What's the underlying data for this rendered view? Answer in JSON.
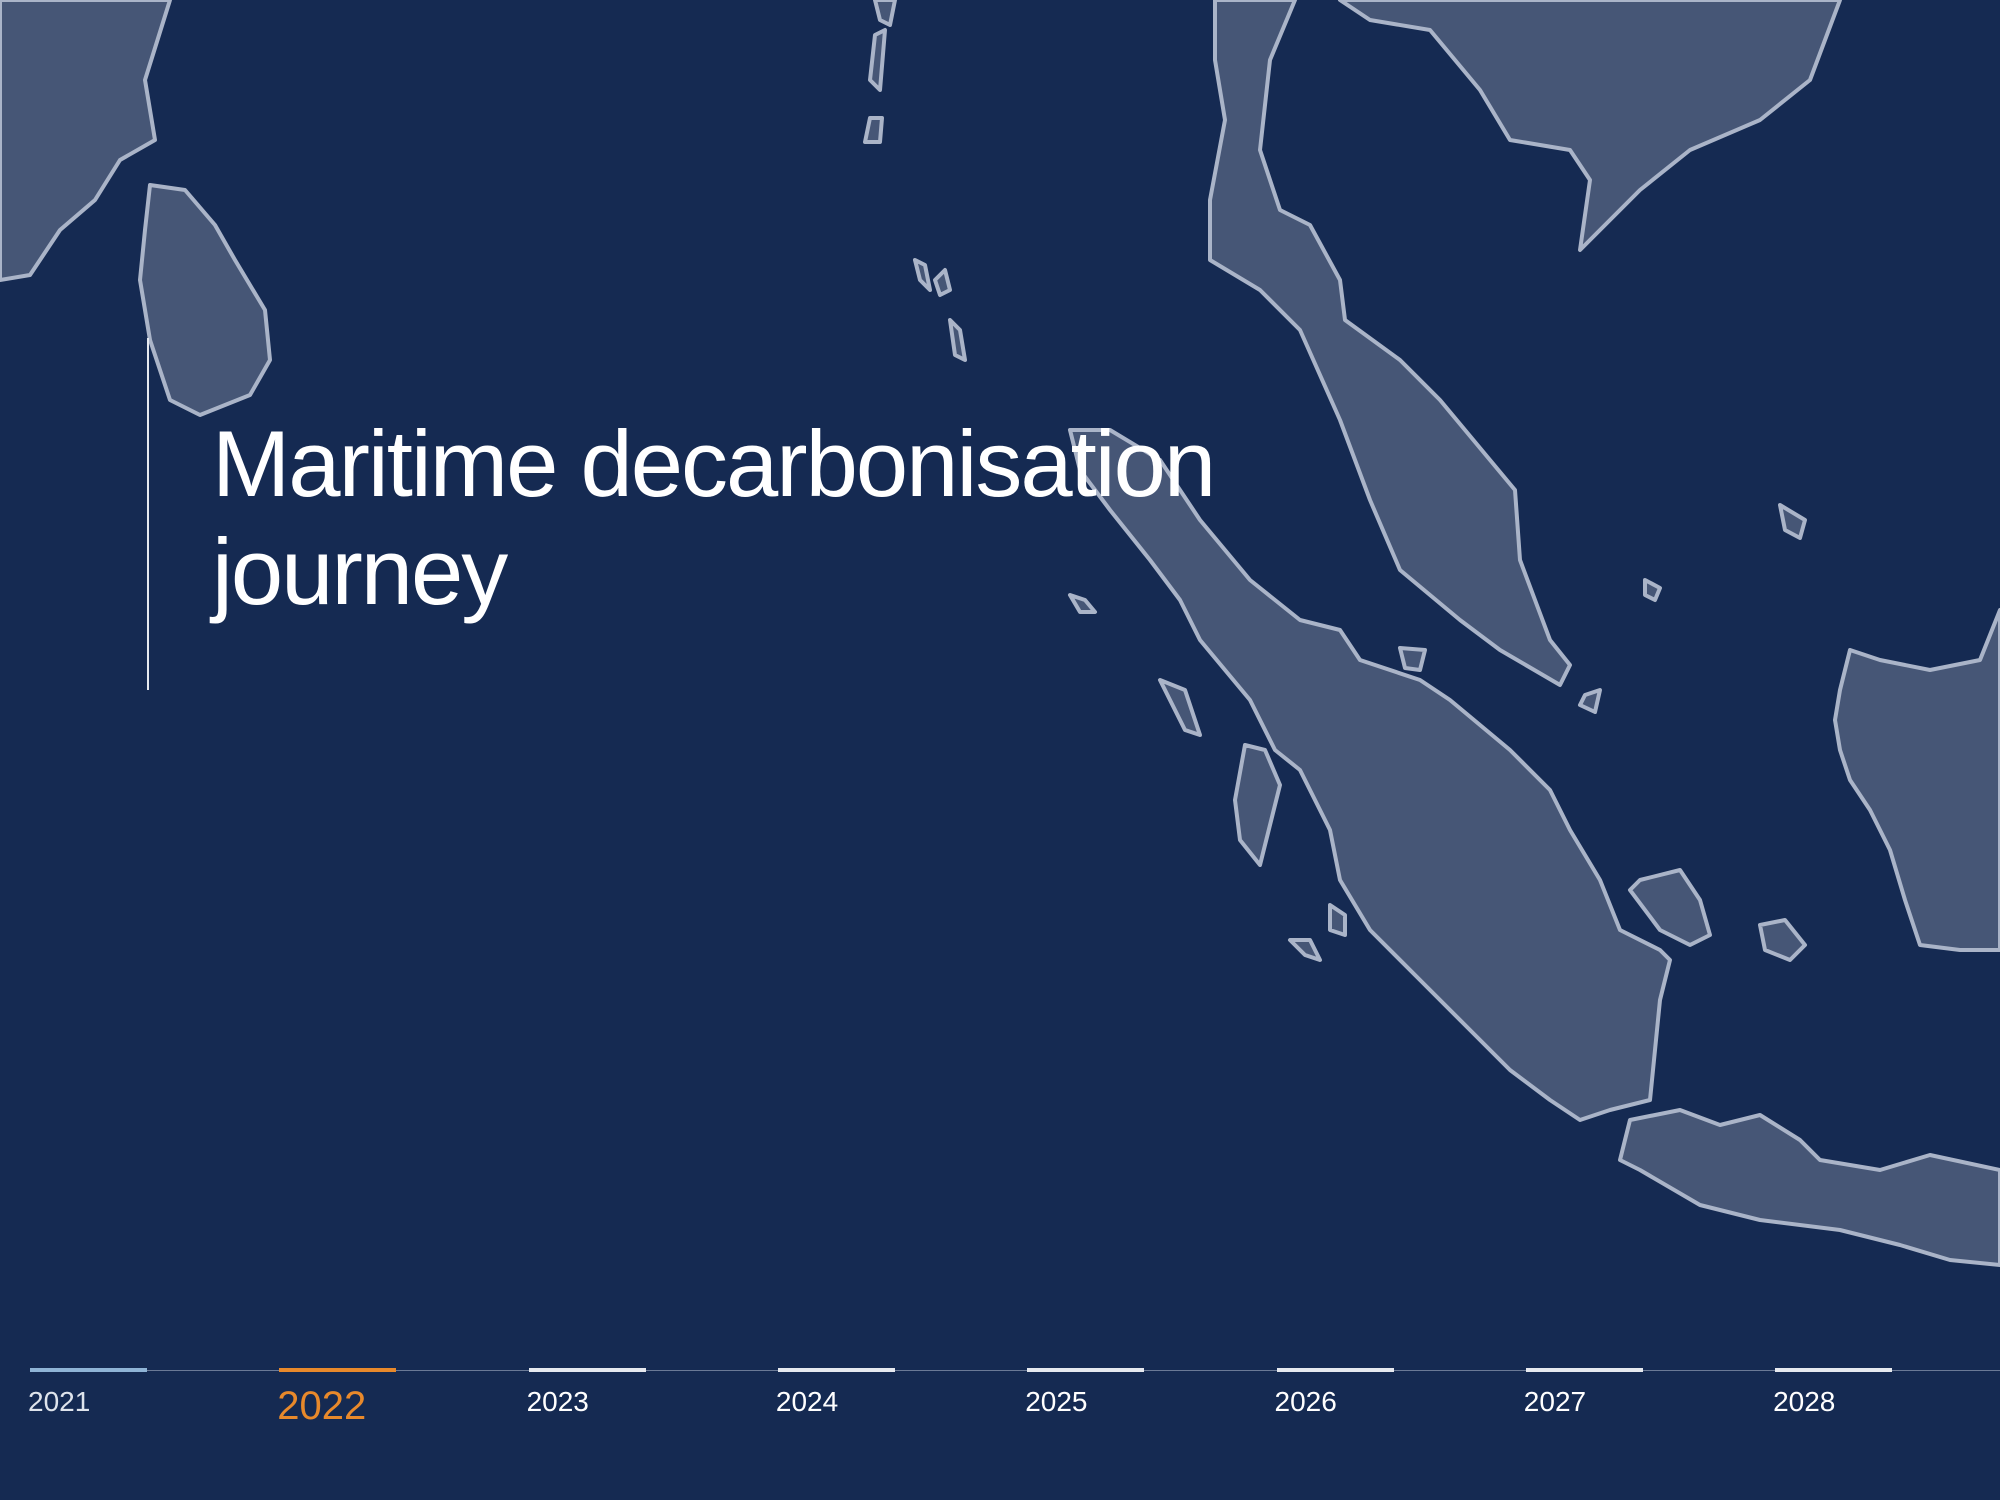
{
  "header": {
    "title": "Maritime decarbonisation journey"
  },
  "timeline": {
    "years": [
      "2021",
      "2022",
      "2023",
      "2024",
      "2025",
      "2026",
      "2027",
      "2028"
    ],
    "selected": "2022"
  }
}
